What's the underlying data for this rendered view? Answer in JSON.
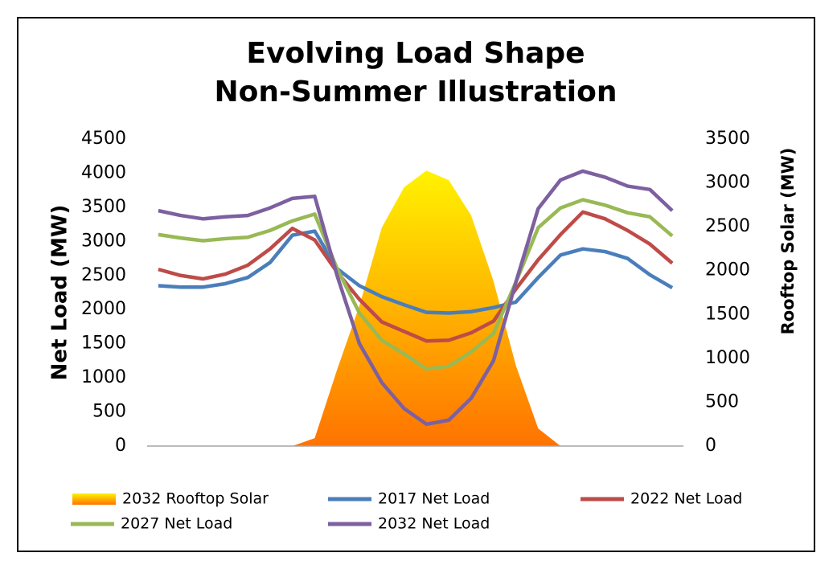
{
  "chart_data": {
    "type": "line",
    "title": [
      "Evolving Load Shape",
      "Non-Summer Illustration"
    ],
    "y_label": "Net Load (MW)",
    "y2_label": "Rooftop Solar (MW)",
    "categories": [
      null,
      null,
      null,
      null,
      null,
      null,
      null,
      null,
      null,
      null,
      null,
      null,
      null,
      null,
      null,
      null,
      null,
      null,
      null,
      null,
      null,
      null,
      null,
      null
    ],
    "ylim": [
      0,
      4500
    ],
    "yticks": [
      0,
      500,
      1000,
      1500,
      2000,
      2500,
      3000,
      3500,
      4000,
      4500
    ],
    "y2lim": [
      0,
      3500
    ],
    "y2ticks": [
      0,
      500,
      1000,
      1500,
      2000,
      2500,
      3000,
      3500
    ],
    "series": [
      {
        "name": "2032 Rooftop Solar",
        "type": "area",
        "axis": "y2",
        "color": [
          "#fff200",
          "#ff7300"
        ],
        "values": [
          0,
          0,
          0,
          0,
          0,
          0,
          0,
          90,
          870,
          1600,
          2490,
          2950,
          3140,
          3030,
          2630,
          1880,
          920,
          200,
          0,
          0,
          0,
          0,
          0,
          0
        ]
      },
      {
        "name": "2017 Net Load",
        "color": "#4a7ebb",
        "values": [
          2350,
          2330,
          2330,
          2380,
          2470,
          2690,
          3090,
          3150,
          2600,
          2350,
          2190,
          2070,
          1960,
          1950,
          1970,
          2030,
          2110,
          2470,
          2800,
          2890,
          2850,
          2750,
          2510,
          2320
        ]
      },
      {
        "name": "2022 Net Load",
        "color": "#be4b48",
        "values": [
          2590,
          2500,
          2450,
          2520,
          2650,
          2890,
          3190,
          3020,
          2550,
          2150,
          1820,
          1680,
          1540,
          1550,
          1660,
          1830,
          2300,
          2730,
          3100,
          3430,
          3330,
          3160,
          2960,
          2680
        ]
      },
      {
        "name": "2027 Net Load",
        "color": "#98b954",
        "values": [
          3100,
          3050,
          3010,
          3040,
          3060,
          3160,
          3300,
          3400,
          2600,
          1950,
          1550,
          1350,
          1130,
          1170,
          1380,
          1650,
          2400,
          3200,
          3490,
          3610,
          3530,
          3420,
          3360,
          3080
        ]
      },
      {
        "name": "2032 Net Load",
        "color": "#7d60a0",
        "values": [
          3450,
          3380,
          3330,
          3360,
          3380,
          3490,
          3630,
          3660,
          2500,
          1500,
          930,
          550,
          320,
          380,
          700,
          1250,
          2400,
          3480,
          3900,
          4030,
          3940,
          3810,
          3760,
          3450
        ]
      }
    ]
  }
}
